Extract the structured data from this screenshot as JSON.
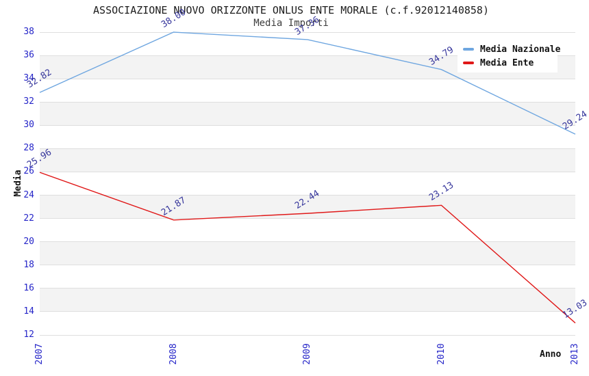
{
  "title": "ASSOCIAZIONE NUOVO ORIZZONTE ONLUS ENTE MORALE (c.f.92012140858)",
  "subtitle": "Media Importi",
  "axes": {
    "y_label": "Media",
    "x_label": "Anno"
  },
  "legend": [
    {
      "label": "Media Nazionale",
      "color": "#6ea6e0"
    },
    {
      "label": "Media Ente",
      "color": "#e01818"
    }
  ],
  "chart_data": {
    "type": "line",
    "title": "ASSOCIAZIONE NUOVO ORIZZONTE ONLUS ENTE MORALE (c.f.92012140858)",
    "subtitle": "Media Importi",
    "xlabel": "Anno",
    "ylabel": "Media",
    "categories": [
      "2007",
      "2008",
      "2009",
      "2010",
      "2013"
    ],
    "series": [
      {
        "name": "Media Nazionale",
        "color": "#6ea6e0",
        "values": [
          32.82,
          38.0,
          37.36,
          34.79,
          29.24
        ]
      },
      {
        "name": "Media Ente",
        "color": "#e01818",
        "values": [
          25.96,
          21.87,
          22.44,
          23.13,
          13.03
        ]
      }
    ],
    "ylim": [
      12,
      38
    ],
    "ytick_step": 2,
    "grid": "horizontal",
    "band_fill": "alternating",
    "legend_position": "top-right",
    "value_labels_decimals": 2
  },
  "colors": {
    "band_gray": "#f3f3f3",
    "gridline": "#dedede",
    "plot_border": "#cfcfcf",
    "tick_text": "#2424c8",
    "value_label_text": "#35359b",
    "background": "#ffffff"
  }
}
